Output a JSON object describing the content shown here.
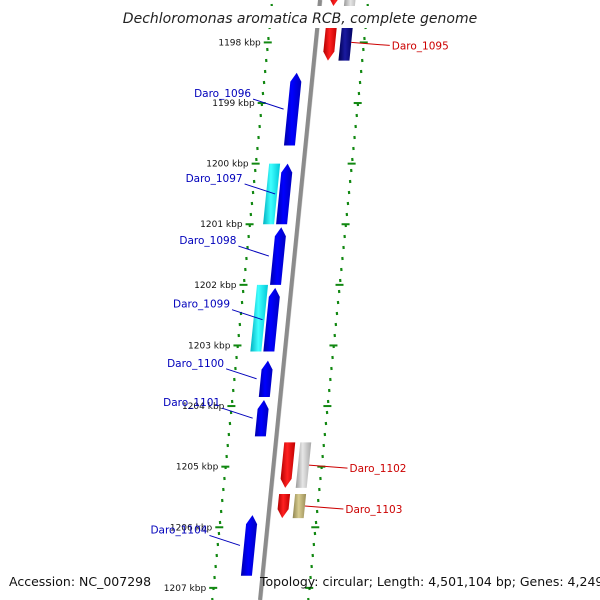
{
  "title": "Dechloromonas aromatica RCB, complete genome",
  "footer": {
    "accession": "Accession: NC_007298",
    "topology": "Topology: circular; Length: 4,501,104 bp; Genes: 4,249"
  },
  "colors": {
    "backbone": "#8c8c8c",
    "tick": "#118811",
    "forward_label": "#0000bb",
    "reverse_label": "#cc0000",
    "blue": "#0000ee",
    "cyan": "#00e5ee",
    "red": "#ee0000",
    "navy": "#000080",
    "gray": "#bdbdbd",
    "khaki": "#b5a86a"
  },
  "ticks": [
    {
      "label": "1198 kbp",
      "kbp": 1198
    },
    {
      "label": "1199 kbp",
      "kbp": 1199
    },
    {
      "label": "1200 kbp",
      "kbp": 1200
    },
    {
      "label": "1201 kbp",
      "kbp": 1201
    },
    {
      "label": "1202 kbp",
      "kbp": 1202
    },
    {
      "label": "1203 kbp",
      "kbp": 1203
    },
    {
      "label": "1204 kbp",
      "kbp": 1204
    },
    {
      "label": "1205 kbp",
      "kbp": 1205
    },
    {
      "label": "1206 kbp",
      "kbp": 1206
    },
    {
      "label": "1207 kbp",
      "kbp": 1207
    }
  ],
  "features": [
    {
      "id": "daro-1095",
      "label": "Daro_1095",
      "strand": "reverse",
      "start": 1197.7,
      "end": 1198.3,
      "color": "red"
    },
    {
      "id": "daro-1095-partner",
      "label": "",
      "strand": "reverse2",
      "start": 1197.7,
      "end": 1198.3,
      "color": "navy"
    },
    {
      "id": "top-gray",
      "label": "",
      "strand": "reverse2",
      "start": 1196.8,
      "end": 1197.4,
      "color": "gray"
    },
    {
      "id": "top-red",
      "label": "",
      "strand": "reverse",
      "start": 1196.8,
      "end": 1197.4,
      "color": "red"
    },
    {
      "id": "daro-1096",
      "label": "Daro_1096",
      "strand": "forward",
      "start": 1198.5,
      "end": 1199.7,
      "color": "blue"
    },
    {
      "id": "daro-1097",
      "label": "Daro_1097",
      "strand": "forward",
      "start": 1200.0,
      "end": 1201.0,
      "color": "blue"
    },
    {
      "id": "daro-1097-cds",
      "label": "",
      "strand": "forward2",
      "start": 1200.0,
      "end": 1201.0,
      "color": "cyan"
    },
    {
      "id": "daro-1098",
      "label": "Daro_1098",
      "strand": "forward",
      "start": 1201.05,
      "end": 1202.0,
      "color": "blue"
    },
    {
      "id": "daro-1099",
      "label": "Daro_1099",
      "strand": "forward",
      "start": 1202.05,
      "end": 1203.1,
      "color": "blue"
    },
    {
      "id": "daro-1099-cds",
      "label": "",
      "strand": "forward2",
      "start": 1202.0,
      "end": 1203.1,
      "color": "cyan"
    },
    {
      "id": "daro-1100",
      "label": "Daro_1100",
      "strand": "forward",
      "start": 1203.25,
      "end": 1203.85,
      "color": "blue"
    },
    {
      "id": "daro-1101",
      "label": "Daro_1101",
      "strand": "forward",
      "start": 1203.9,
      "end": 1204.5,
      "color": "blue"
    },
    {
      "id": "daro-1102",
      "label": "Daro_1102",
      "strand": "reverse",
      "start": 1204.6,
      "end": 1205.35,
      "color": "red"
    },
    {
      "id": "daro-1102-partner",
      "label": "",
      "strand": "reverse2",
      "start": 1204.6,
      "end": 1205.35,
      "color": "gray"
    },
    {
      "id": "daro-1103",
      "label": "Daro_1103",
      "strand": "reverse",
      "start": 1205.45,
      "end": 1205.85,
      "color": "red"
    },
    {
      "id": "daro-1103-partner",
      "label": "",
      "strand": "reverse2",
      "start": 1205.45,
      "end": 1205.85,
      "color": "khaki"
    },
    {
      "id": "daro-1104",
      "label": "Daro_1104",
      "strand": "forward",
      "start": 1205.8,
      "end": 1206.8,
      "color": "blue"
    }
  ]
}
